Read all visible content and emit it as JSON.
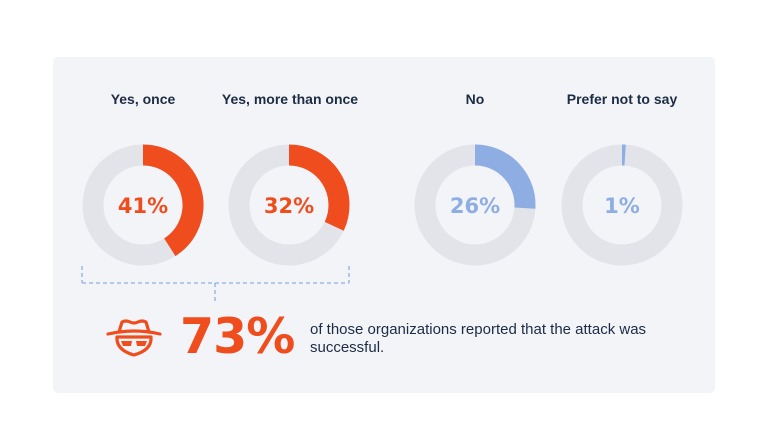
{
  "colors": {
    "accent_orange": "#f04d1e",
    "accent_blue": "#8eaee3",
    "track": "#e2e4ea",
    "text_dark": "#1c2c44",
    "bracket": "#8eaee3"
  },
  "chart_data": {
    "type": "pie",
    "variant": "donut",
    "categories": [
      "Yes, once",
      "Yes, more than once",
      "No",
      "Prefer not to say"
    ],
    "values": [
      41,
      32,
      26,
      1
    ],
    "value_labels": [
      "41%",
      "32%",
      "26%",
      "1%"
    ],
    "series_colors": [
      "#f04d1e",
      "#f04d1e",
      "#8eaee3",
      "#8eaee3"
    ],
    "annotation": {
      "value": "73%",
      "text": "of those organizations reported that the attack was successful.",
      "groups": [
        "Yes, once",
        "Yes, more than once"
      ]
    }
  },
  "icons": {
    "stat_icon": "hacker-icon"
  }
}
